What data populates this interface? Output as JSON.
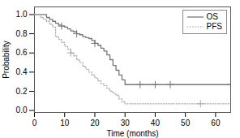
{
  "chart_data": {
    "type": "step",
    "xlabel": "Time (months)",
    "ylabel": "Probability",
    "xlim": [
      0,
      65
    ],
    "ylim": [
      -0.02,
      1.08
    ],
    "xticks": [
      0,
      10,
      20,
      30,
      40,
      50,
      60
    ],
    "yticks": [
      {
        "value": 0.0,
        "label": "0.0"
      },
      0.2,
      0.4,
      0.6,
      0.8,
      {
        "value": 1.0,
        "label": "1.0"
      }
    ],
    "grid": false,
    "legend": "upper right",
    "series": [
      {
        "name": "OS",
        "color": "#777777",
        "line_style": "solid",
        "x": [
          0,
          2,
          4,
          5,
          6,
          7,
          8,
          9,
          10,
          11,
          12,
          13,
          14,
          15,
          16,
          17,
          18,
          19,
          20,
          21,
          22,
          23,
          24,
          25,
          26,
          27,
          28,
          29,
          30,
          65
        ],
        "values": [
          1.0,
          1.0,
          0.97,
          0.95,
          0.93,
          0.91,
          0.89,
          0.88,
          0.87,
          0.85,
          0.83,
          0.82,
          0.8,
          0.79,
          0.77,
          0.76,
          0.75,
          0.73,
          0.7,
          0.68,
          0.65,
          0.62,
          0.58,
          0.53,
          0.47,
          0.42,
          0.37,
          0.32,
          0.27,
          0.27
        ],
        "censor_x": [
          9,
          14,
          20,
          35,
          40,
          45,
          65
        ],
        "censor_values": [
          0.88,
          0.8,
          0.7,
          0.27,
          0.27,
          0.27,
          0.27
        ]
      },
      {
        "name": "PFS",
        "color": "#aaaaaa",
        "line_style": "dotted",
        "x": [
          0,
          2,
          3,
          4,
          5,
          6,
          7,
          8,
          9,
          10,
          11,
          12,
          13,
          14,
          15,
          16,
          17,
          18,
          19,
          20,
          21,
          22,
          23,
          24,
          25,
          26,
          27,
          28,
          29,
          30,
          65
        ],
        "values": [
          1.0,
          0.97,
          0.95,
          0.93,
          0.9,
          0.87,
          0.77,
          0.74,
          0.71,
          0.67,
          0.64,
          0.6,
          0.57,
          0.53,
          0.5,
          0.46,
          0.43,
          0.4,
          0.37,
          0.34,
          0.31,
          0.28,
          0.26,
          0.23,
          0.2,
          0.18,
          0.16,
          0.12,
          0.09,
          0.07,
          0.07
        ],
        "censor_x": [
          12,
          55
        ],
        "censor_values": [
          0.6,
          0.07
        ]
      }
    ]
  }
}
